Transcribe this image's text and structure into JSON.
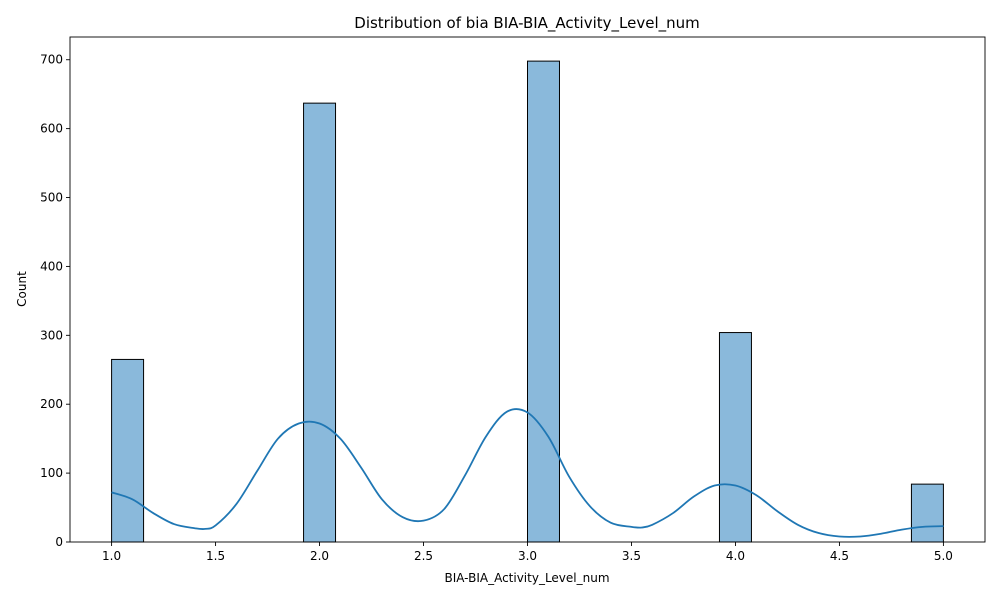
{
  "chart_data": {
    "type": "bar",
    "subtype": "histogram-with-kde",
    "title": "Distribution of bia BIA-BIA_Activity_Level_num",
    "xlabel": "BIA-BIA_Activity_Level_num",
    "ylabel": "Count",
    "xlim": [
      0.8,
      5.2
    ],
    "ylim": [
      0,
      733
    ],
    "x_ticks": [
      1.0,
      1.5,
      2.0,
      2.5,
      3.0,
      3.5,
      4.0,
      4.5,
      5.0
    ],
    "x_tick_labels": [
      "1.0",
      "1.5",
      "2.0",
      "2.5",
      "3.0",
      "3.5",
      "4.0",
      "4.5",
      "5.0"
    ],
    "y_ticks": [
      0,
      100,
      200,
      300,
      400,
      500,
      600,
      700
    ],
    "y_tick_labels": [
      "0",
      "100",
      "200",
      "300",
      "400",
      "500",
      "600",
      "700"
    ],
    "grid": false,
    "bars": [
      {
        "x0": 1.0,
        "x1": 1.1538,
        "value": 265
      },
      {
        "x0": 1.9231,
        "x1": 2.0769,
        "value": 637
      },
      {
        "x0": 3.0,
        "x1": 3.1538,
        "value": 698
      },
      {
        "x0": 3.9231,
        "x1": 4.0769,
        "value": 304
      },
      {
        "x0": 4.8462,
        "x1": 5.0,
        "value": 84
      }
    ],
    "kde": {
      "x": [
        1.0,
        1.1,
        1.2,
        1.3,
        1.4,
        1.45,
        1.5,
        1.6,
        1.7,
        1.8,
        1.9,
        2.0,
        2.1,
        2.2,
        2.3,
        2.4,
        2.5,
        2.6,
        2.7,
        2.8,
        2.9,
        3.0,
        3.1,
        3.2,
        3.3,
        3.4,
        3.5,
        3.55,
        3.6,
        3.7,
        3.8,
        3.9,
        4.0,
        4.1,
        4.2,
        4.3,
        4.4,
        4.5,
        4.6,
        4.7,
        4.8,
        4.9,
        5.0
      ],
      "y": [
        72,
        62,
        42,
        26,
        20,
        19,
        24,
        55,
        103,
        150,
        172,
        172,
        150,
        108,
        62,
        36,
        31,
        48,
        97,
        153,
        189,
        188,
        153,
        95,
        52,
        28,
        22,
        21,
        25,
        42,
        66,
        82,
        82,
        68,
        45,
        25,
        13,
        8,
        8,
        12,
        18,
        22,
        23
      ],
      "color": "#1f77b4"
    },
    "bar_fill": "#8ab9db",
    "bar_edge": "#000000"
  }
}
